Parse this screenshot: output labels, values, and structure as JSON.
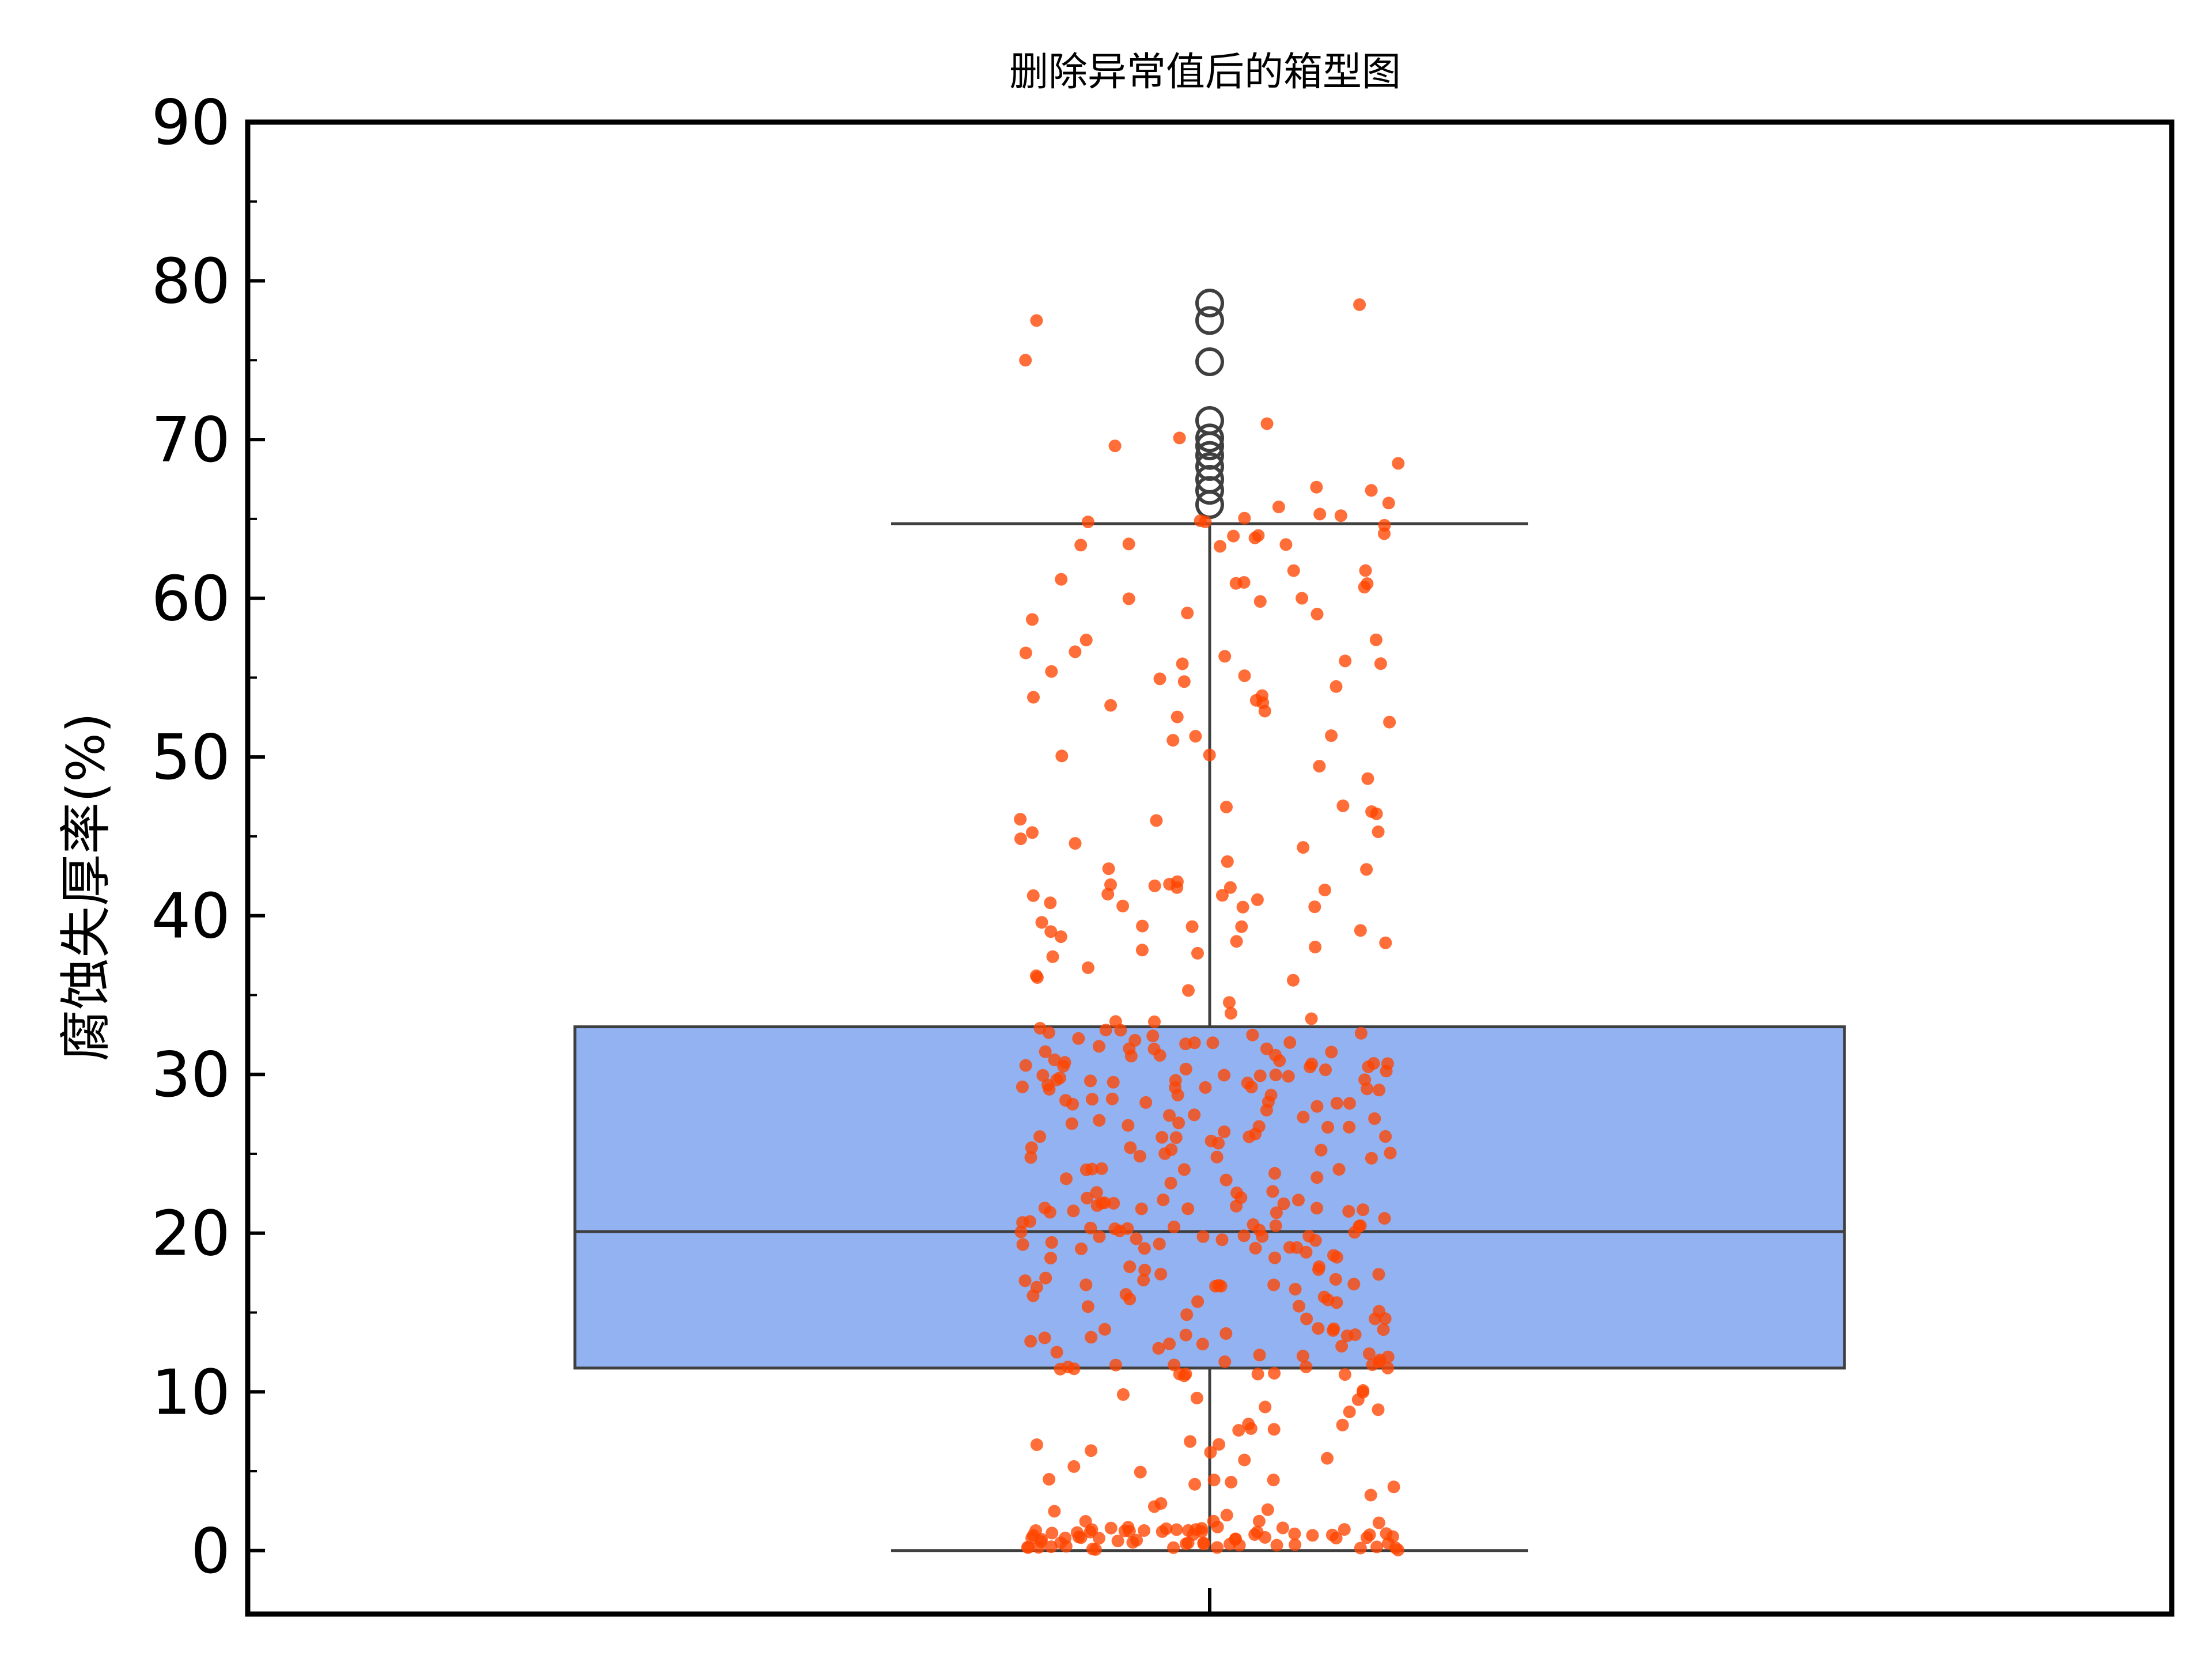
{
  "chart_data": {
    "type": "box",
    "title": "删除异常值后的箱型图",
    "xlabel": "",
    "ylabel": "腐蚀失厚率(%)",
    "ylim": [
      -4,
      90
    ],
    "yticks": [
      "0",
      "10",
      "20",
      "30",
      "40",
      "50",
      "60",
      "70",
      "80",
      "90"
    ],
    "grid": false,
    "box": {
      "whisker_low": 0,
      "q1": 11.5,
      "median": 20.1,
      "q3": 33.0,
      "whisker_high": 64.7
    },
    "outliers": [
      65.9,
      66.8,
      67.5,
      68.3,
      69.0,
      69.6,
      70.1,
      71.2,
      74.9,
      77.5,
      78.6
    ],
    "jitter_points": {
      "count": 460,
      "notable_values": [
        75.0,
        77.5,
        78.5,
        71.0,
        70.1,
        69.6,
        68.5,
        67.0,
        66.0,
        64.6,
        61.0,
        60.7,
        60.0,
        59.0
      ],
      "color": "#ff4500"
    },
    "colors": {
      "box_fill": "#92b2f2",
      "box_edge": "#3f3f3f",
      "point": "#ff4500",
      "outlier_edge": "#3f3f3f"
    }
  }
}
